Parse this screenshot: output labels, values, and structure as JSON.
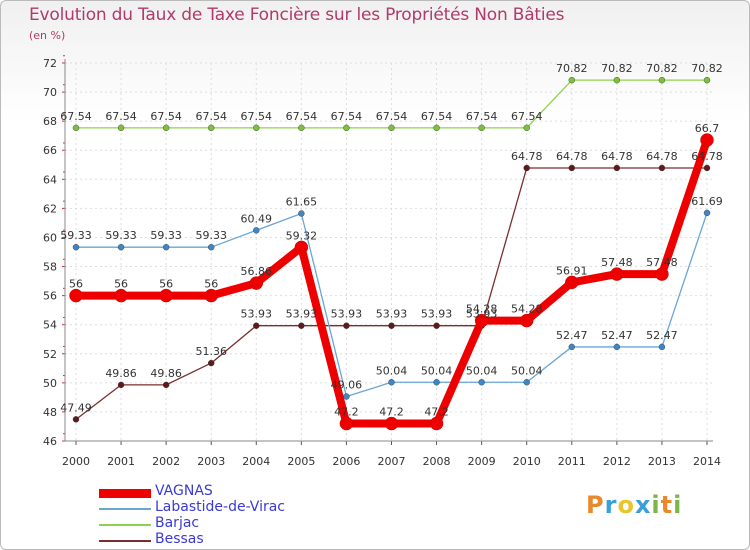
{
  "title": "Evolution du Taux de Taxe Foncière sur les Propriétés Non Bâties",
  "unit_label": "(en %)",
  "logo_text": "Proxiti",
  "logo_colors": [
    "#e8892b",
    "#3aa0d8",
    "#e8c52b",
    "#3aa0d8",
    "#7ab648",
    "#e8892b",
    "#7ab648"
  ],
  "chart_data": {
    "type": "line",
    "title": "Evolution du Taux de Taxe Foncière sur les Propriétés Non Bâties",
    "ylabel": "(en %)",
    "xlabel": "",
    "x": [
      "2000",
      "2001",
      "2002",
      "2003",
      "2004",
      "2005",
      "2006",
      "2007",
      "2008",
      "2009",
      "2010",
      "2011",
      "2012",
      "2013",
      "2014"
    ],
    "ylim": [
      46,
      72
    ],
    "yticks": [
      46,
      48,
      50,
      52,
      54,
      56,
      58,
      60,
      62,
      64,
      66,
      68,
      70,
      72
    ],
    "grid": true,
    "legend_position": "bottom-left",
    "series": [
      {
        "name": "Barjac",
        "color": "#8fd14f",
        "marker": "#7ac23a",
        "values": [
          67.54,
          67.54,
          67.54,
          67.54,
          67.54,
          67.54,
          67.54,
          67.54,
          67.54,
          67.54,
          67.54,
          70.82,
          70.82,
          70.82,
          70.82
        ],
        "labels": [
          "67.54",
          "67.54",
          "67.54",
          "67.54",
          "67.54",
          "67.54",
          "67.54",
          "67.54",
          "67.54",
          "67.54",
          "67.54",
          "70.82",
          "70.82",
          "70.82",
          "70.82"
        ]
      },
      {
        "name": "Bessas",
        "color": "#7a2e2e",
        "marker": "#5e1a1a",
        "values": [
          47.49,
          49.86,
          49.86,
          51.36,
          53.93,
          53.93,
          53.93,
          53.93,
          53.93,
          53.93,
          64.78,
          64.78,
          64.78,
          64.78,
          64.78
        ],
        "labels": [
          "47.49",
          "49.86",
          "49.86",
          "51.36",
          "53.93",
          "53.93",
          "53.93",
          "53.93",
          "53.93",
          "53.93",
          "64.78",
          "64.78",
          "64.78",
          "64.78",
          "64.78"
        ]
      },
      {
        "name": "Labastide-de-Virac",
        "color": "#6aa5d6",
        "marker": "#3f86c8",
        "values": [
          59.33,
          59.33,
          59.33,
          59.33,
          60.49,
          61.65,
          49.06,
          50.04,
          50.04,
          50.04,
          50.04,
          52.47,
          52.47,
          52.47,
          61.69
        ],
        "labels": [
          "59.33",
          "59.33",
          "59.33",
          "59.33",
          "60.49",
          "61.65",
          "49.06",
          "50.04",
          "50.04",
          "50.04",
          "50.04",
          "52.47",
          "52.47",
          "52.47",
          "61.69"
        ]
      },
      {
        "name": "VAGNAS",
        "color": "#ee0000",
        "marker": "#ee0000",
        "values": [
          56,
          56,
          56,
          56,
          56.86,
          59.32,
          47.2,
          47.2,
          47.2,
          54.28,
          54.28,
          56.91,
          57.48,
          57.48,
          66.7
        ],
        "labels": [
          "56",
          "56",
          "56",
          "56",
          "56.86",
          "59.32",
          "47.2",
          "47.2",
          "47.2",
          "54.28",
          "54.28",
          "56.91",
          "57.48",
          "57.48",
          "66.7"
        ]
      }
    ],
    "legend": [
      {
        "name": "VAGNAS",
        "color": "#ee0000",
        "style": "thick"
      },
      {
        "name": "Labastide-de-Virac",
        "color": "#6aa5d6",
        "style": "thin"
      },
      {
        "name": "Barjac",
        "color": "#8fd14f",
        "style": "thin"
      },
      {
        "name": "Bessas",
        "color": "#7a2e2e",
        "style": "thin"
      }
    ]
  }
}
